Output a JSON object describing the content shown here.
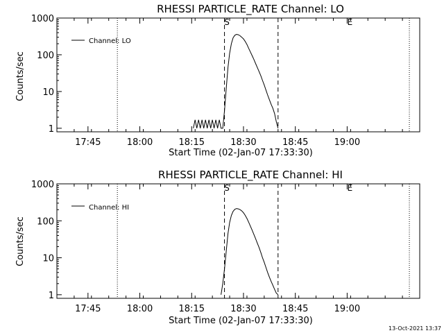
{
  "footer": {
    "timestamp": "13-Oct-2021 13:37"
  },
  "markers": {
    "start_label": "S",
    "end_label": "E",
    "dotted_times": [
      17.8917,
      19.3
    ],
    "dashed_times": [
      18.4083,
      18.6667
    ],
    "start_label_time": 18.4167,
    "end_label_time": 19.0
  },
  "chart_data": [
    {
      "type": "line",
      "title": "RHESSI PARTICLE_RATE Channel: LO",
      "xlabel": "Start Time (02-Jan-07 17:33:30)",
      "ylabel": "Counts/sec",
      "yscale": "log",
      "xlim": [
        17.6,
        19.35
      ],
      "ylim": [
        0.8,
        1000
      ],
      "x_ticks": [
        {
          "t": 17.75,
          "label": "17:45"
        },
        {
          "t": 18.0,
          "label": "18:00"
        },
        {
          "t": 18.25,
          "label": "18:15"
        },
        {
          "t": 18.5,
          "label": "18:30"
        },
        {
          "t": 18.75,
          "label": "18:45"
        },
        {
          "t": 19.0,
          "label": "19:00"
        }
      ],
      "y_ticks": [
        {
          "v": 1,
          "label": "1"
        },
        {
          "v": 10,
          "label": "10"
        },
        {
          "v": 100,
          "label": "100"
        },
        {
          "v": 1000,
          "label": "1000"
        }
      ],
      "legend": {
        "label": "Channel: LO",
        "position": "top-left"
      },
      "series": [
        {
          "name": "Channel: LO",
          "x": [
            18.2583,
            18.2667,
            18.275,
            18.2833,
            18.2917,
            18.3,
            18.3083,
            18.3167,
            18.325,
            18.3333,
            18.3417,
            18.35,
            18.3583,
            18.3667,
            18.375,
            18.3833,
            18.3917,
            18.4,
            18.4083,
            18.4167,
            18.425,
            18.4333,
            18.4417,
            18.45,
            18.4583,
            18.4667,
            18.475,
            18.4833,
            18.4917,
            18.5,
            18.5083,
            18.5167,
            18.525,
            18.5333,
            18.5417,
            18.55,
            18.5583,
            18.5667,
            18.575,
            18.5833,
            18.5917,
            18.6,
            18.6083,
            18.6167,
            18.625,
            18.6333,
            18.6417,
            18.65,
            18.6583,
            18.6667
          ],
          "y": [
            1,
            1.7,
            1,
            1.7,
            1,
            1.7,
            1,
            1.7,
            1,
            1.7,
            1,
            1.7,
            1,
            1.7,
            1,
            1.7,
            1,
            1,
            3,
            12,
            45,
            110,
            200,
            290,
            340,
            360,
            350,
            330,
            300,
            270,
            230,
            190,
            150,
            120,
            95,
            75,
            58,
            45,
            35,
            27,
            20,
            15,
            11,
            8,
            6,
            4.5,
            3.5,
            2.5,
            1.5,
            1
          ]
        }
      ]
    },
    {
      "type": "line",
      "title": "RHESSI PARTICLE_RATE Channel: HI",
      "xlabel": "Start Time (02-Jan-07 17:33:30)",
      "ylabel": "Counts/sec",
      "yscale": "log",
      "xlim": [
        17.6,
        19.35
      ],
      "ylim": [
        0.8,
        1000
      ],
      "x_ticks": [
        {
          "t": 17.75,
          "label": "17:45"
        },
        {
          "t": 18.0,
          "label": "18:00"
        },
        {
          "t": 18.25,
          "label": "18:15"
        },
        {
          "t": 18.5,
          "label": "18:30"
        },
        {
          "t": 18.75,
          "label": "18:45"
        },
        {
          "t": 19.0,
          "label": "19:00"
        }
      ],
      "y_ticks": [
        {
          "v": 1,
          "label": "1"
        },
        {
          "v": 10,
          "label": "10"
        },
        {
          "v": 100,
          "label": "100"
        },
        {
          "v": 1000,
          "label": "1000"
        }
      ],
      "legend": {
        "label": "Channel: HI",
        "position": "top-left"
      },
      "series": [
        {
          "name": "Channel: HI",
          "x": [
            18.3917,
            18.4,
            18.4083,
            18.4167,
            18.425,
            18.4333,
            18.4417,
            18.45,
            18.4583,
            18.4667,
            18.475,
            18.4833,
            18.4917,
            18.5,
            18.5083,
            18.5167,
            18.525,
            18.5333,
            18.5417,
            18.55,
            18.5583,
            18.5667,
            18.575,
            18.5833,
            18.5917,
            18.6,
            18.6083,
            18.6167,
            18.625,
            18.6333,
            18.6417,
            18.65,
            18.6583,
            18.6667
          ],
          "y": [
            1,
            2,
            5,
            15,
            45,
            90,
            140,
            180,
            205,
            215,
            210,
            200,
            185,
            165,
            140,
            115,
            92,
            72,
            56,
            43,
            33,
            25,
            19,
            14,
            10,
            7.5,
            5.5,
            4,
            3,
            2.3,
            1.8,
            1.4,
            1.1,
            1
          ]
        }
      ]
    }
  ]
}
